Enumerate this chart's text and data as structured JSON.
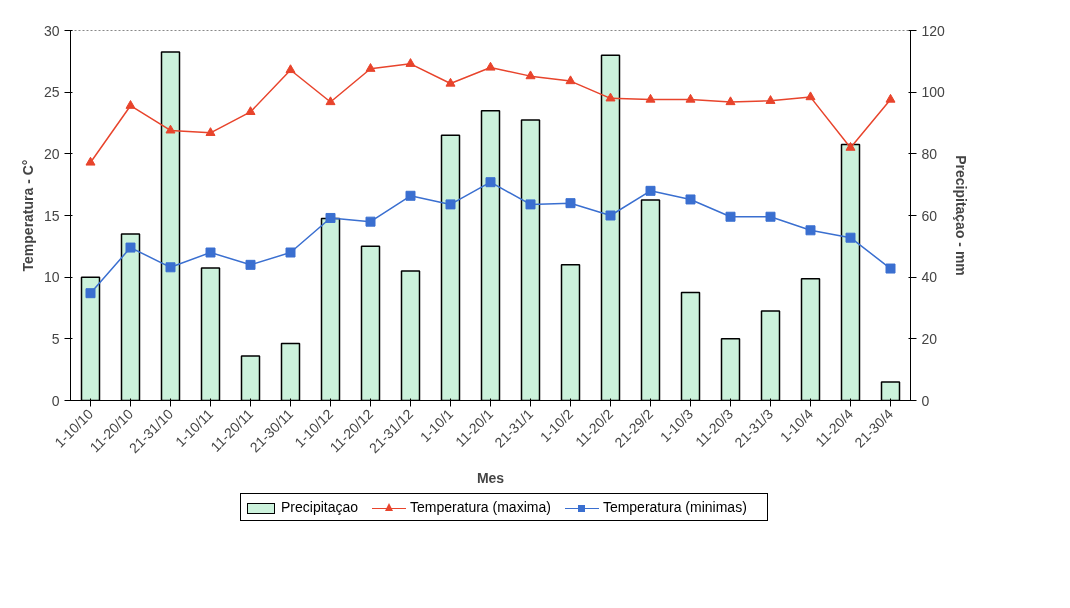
{
  "chart_data": {
    "type": "bar",
    "xlabel": "Mes",
    "ylabel": "Temperatura - C°",
    "y2label": "Precipitaçao - mm",
    "categories": [
      "1-10/10",
      "11-20/10",
      "21-31/10",
      "1-10/11",
      "11-20/11",
      "21-30/11",
      "1-10/12",
      "11-20/12",
      "21-31/12",
      "1-10/1",
      "11-20/1",
      "21-31/1",
      "1-10/2",
      "11-20/2",
      "21-29/2",
      "1-10/3",
      "11-20/3",
      "21-31/3",
      "1-10/4",
      "11-20/4",
      "21-30/4"
    ],
    "series": [
      {
        "name": "Precipitaçao",
        "axis": "y2",
        "color": "#ccf2dc",
        "values": [
          40,
          54,
          113,
          43,
          14.4,
          18.5,
          59,
          50,
          42,
          86,
          94,
          91,
          44,
          112,
          65,
          35,
          20,
          29,
          39.5,
          83,
          6
        ]
      },
      {
        "name": "Temperatura (maxima)",
        "type": "line",
        "marker": "triangle",
        "color": "#e8442c",
        "values": [
          19.3,
          23.9,
          21.9,
          21.7,
          23.4,
          26.8,
          24.2,
          26.9,
          27.3,
          25.7,
          27.0,
          26.3,
          25.9,
          24.5,
          24.4,
          24.4,
          24.2,
          24.3,
          24.6,
          20.5,
          24.4
        ]
      },
      {
        "name": "Temperatura  (minimas)",
        "type": "line",
        "marker": "square",
        "color": "#3a6fd0",
        "values": [
          8.7,
          12.4,
          10.8,
          12.0,
          11.0,
          12.0,
          14.8,
          14.5,
          16.6,
          15.9,
          17.7,
          15.9,
          16.0,
          15.0,
          17.0,
          16.3,
          14.9,
          14.9,
          13.8,
          13.2,
          10.7
        ]
      }
    ],
    "ylim": [
      0,
      30
    ],
    "yticks": [
      0,
      5,
      10,
      15,
      20,
      25,
      30
    ],
    "y2lim": [
      0,
      120
    ],
    "y2ticks": [
      0,
      20,
      40,
      60,
      80,
      100,
      120
    ],
    "grid": false,
    "legend": "bottom"
  }
}
